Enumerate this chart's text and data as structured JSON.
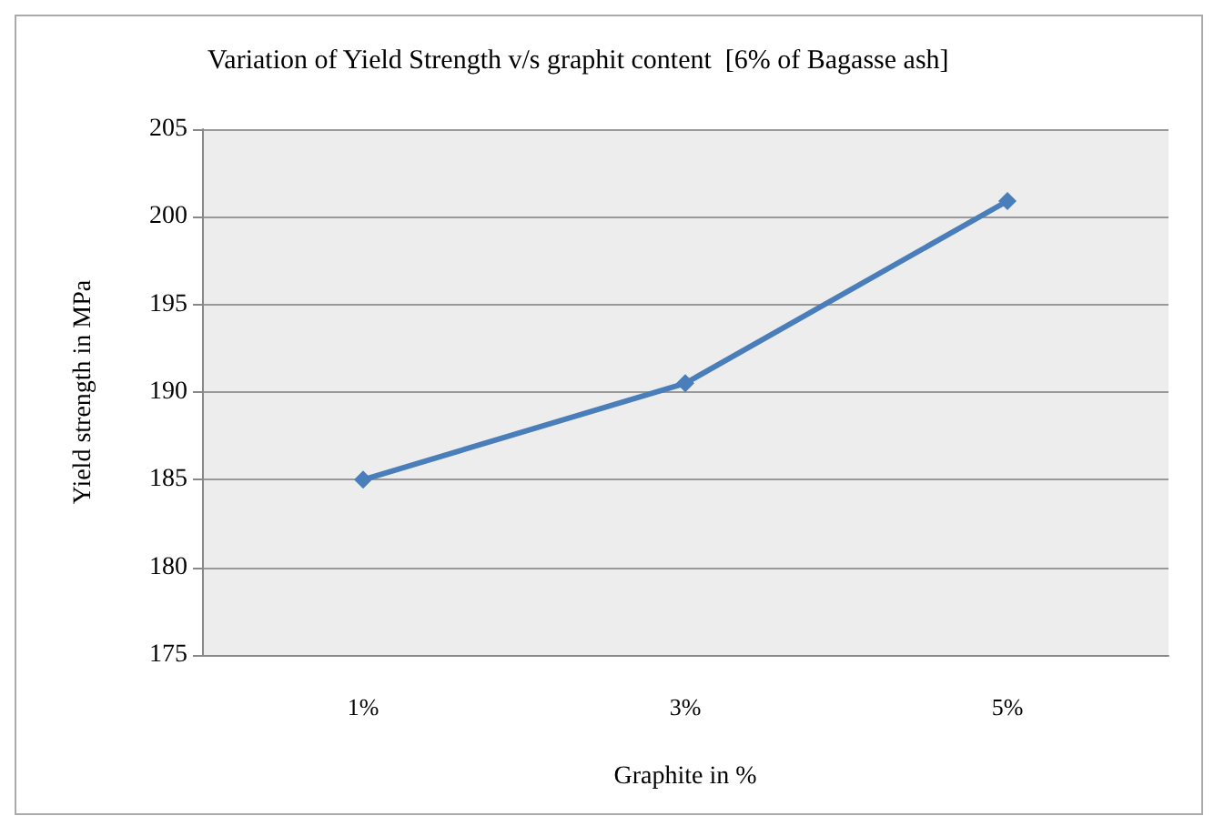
{
  "chart_data": {
    "type": "line",
    "title": "Variation of Yield Strength v/s graphit content  [6% of Bagasse ash]",
    "xlabel": "Graphite in %",
    "ylabel": "Yield strength in MPa",
    "categories": [
      "1%",
      "3%",
      "5%"
    ],
    "series": [
      {
        "color": "#4a7ebb",
        "values": [
          185,
          190.5,
          200.9
        ]
      }
    ],
    "ylim": [
      175,
      205
    ],
    "yticks": [
      175,
      180,
      185,
      190,
      195,
      200,
      205
    ],
    "grid": "y",
    "marker": "diamond",
    "line_style": "solid"
  }
}
